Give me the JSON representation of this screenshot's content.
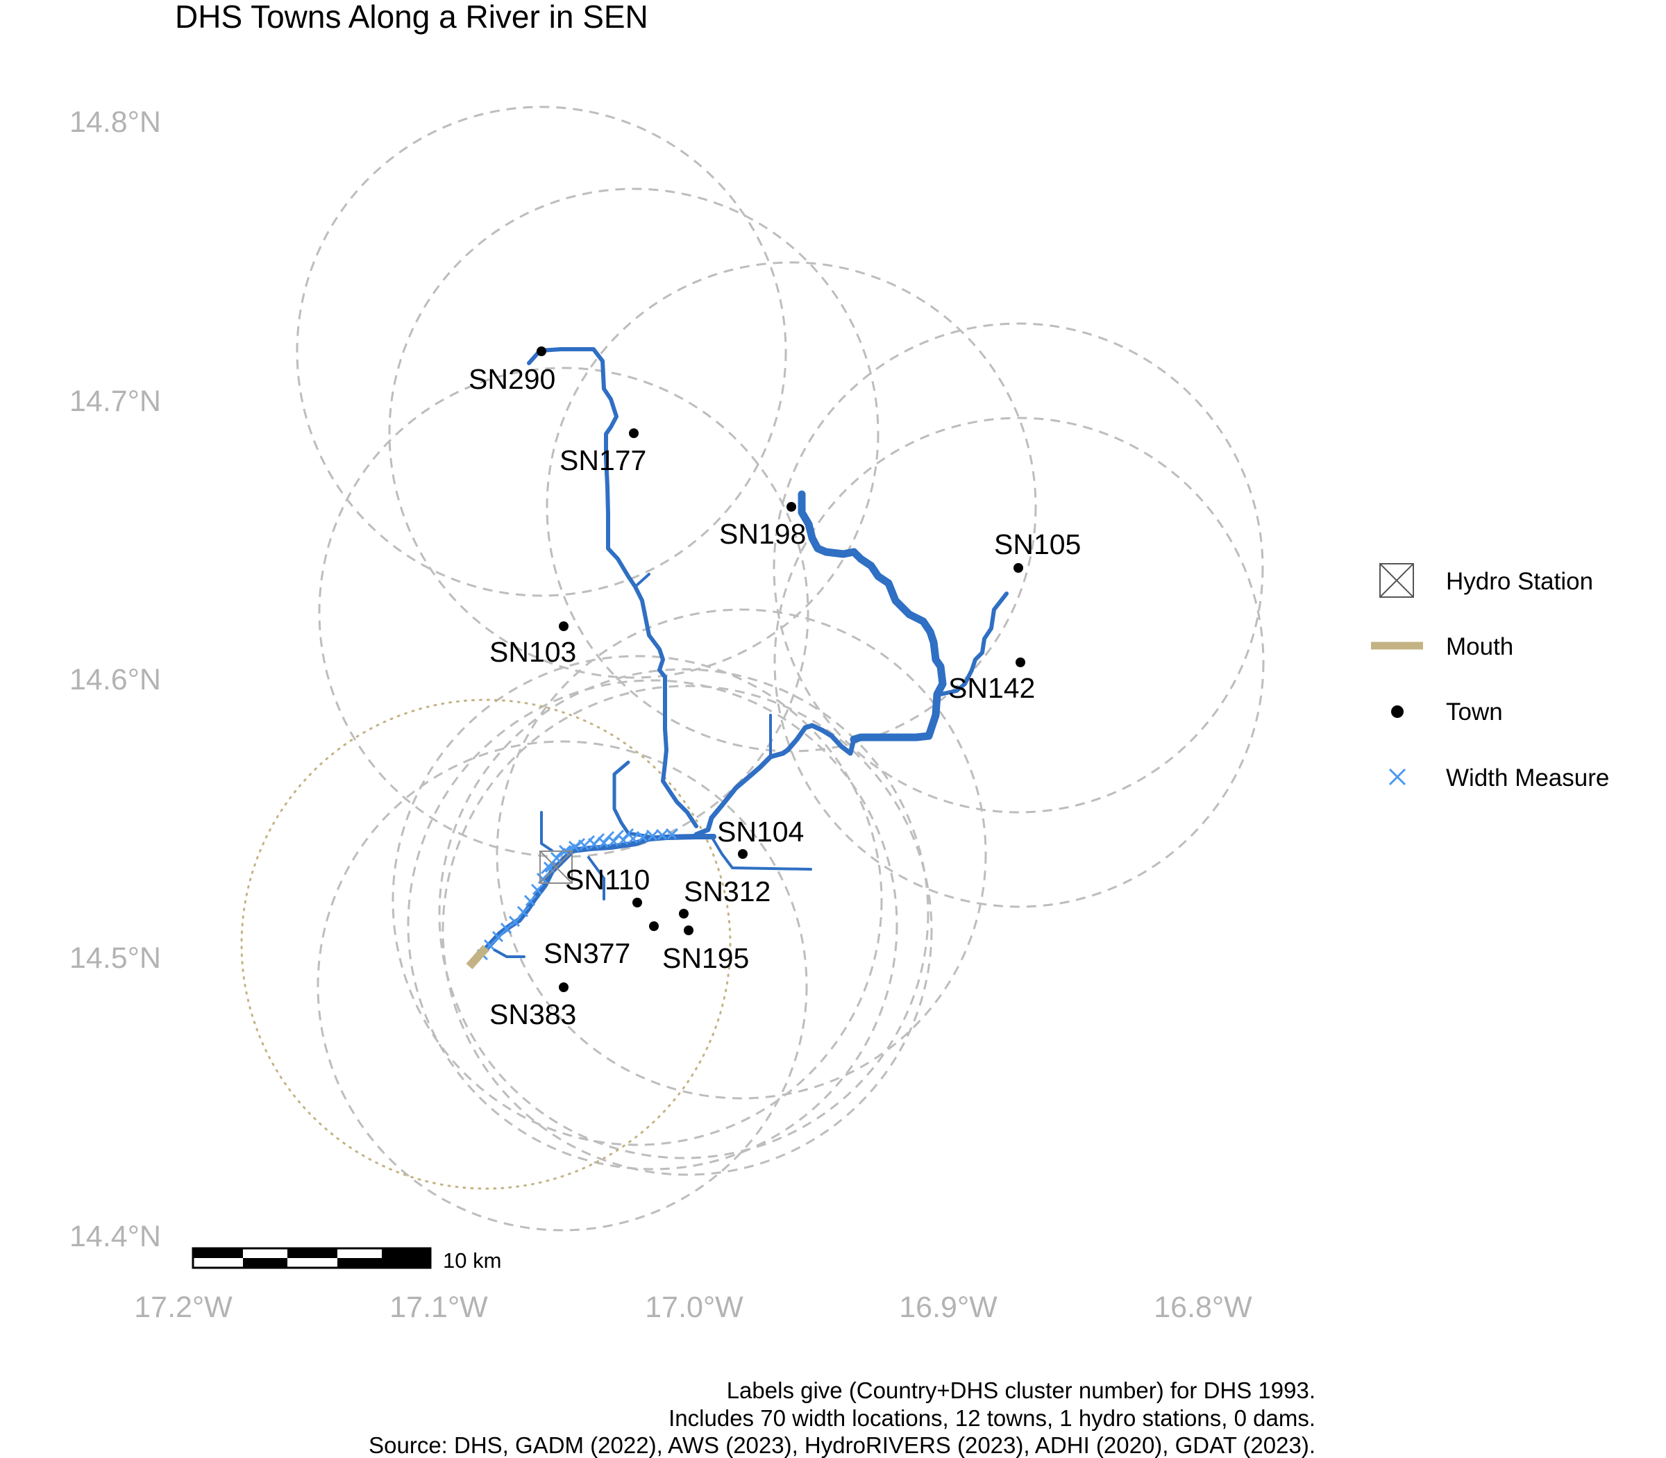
{
  "title": "DHS Towns Along a River in SEN",
  "axes": {
    "y_ticks": [
      "14.8°N",
      "14.7°N",
      "14.6°N",
      "14.5°N",
      "14.4°N"
    ],
    "x_ticks": [
      "17.2°W",
      "17.1°W",
      "17.0°W",
      "16.9°W",
      "16.8°W"
    ],
    "lon_range": [
      -17.2,
      -16.8
    ],
    "lat_range": [
      14.4,
      14.8
    ]
  },
  "towns": [
    {
      "label": "SN290",
      "lon": -17.056,
      "lat": 14.718
    },
    {
      "label": "SN177",
      "lon": -17.021,
      "lat": 14.689
    },
    {
      "label": "SN198",
      "lon": -16.96,
      "lat": 14.66
    },
    {
      "label": "SN105",
      "lon": -16.869,
      "lat": 14.641
    },
    {
      "label": "SN103",
      "lon": -17.047,
      "lat": 14.621
    },
    {
      "label": "SN142",
      "lon": -16.869,
      "lat": 14.606
    },
    {
      "label": "SN104",
      "lon": -16.978,
      "lat": 14.538
    },
    {
      "label": "SN110",
      "lon": -17.023,
      "lat": 14.521
    },
    {
      "label": "SN312",
      "lon": -17.005,
      "lat": 14.517
    },
    {
      "label": "SN377",
      "lon": -17.017,
      "lat": 14.512
    },
    {
      "label": "SN195",
      "lon": -17.003,
      "lat": 14.511
    },
    {
      "label": "SN383",
      "lon": -17.047,
      "lat": 14.489
    }
  ],
  "legend": {
    "items": [
      {
        "label": "Hydro Station",
        "icon": "boxed-x-icon"
      },
      {
        "label": "Mouth",
        "icon": "tan-line-icon",
        "color": "#c3b384"
      },
      {
        "label": "Town",
        "icon": "dot-icon",
        "color": "#000000"
      },
      {
        "label": "Width Measure",
        "icon": "cross-icon",
        "color": "#4a98f0"
      }
    ]
  },
  "scale_bar": {
    "label": "10 km"
  },
  "caption": [
    "Labels give (Country+DHS cluster number) for DHS 1993.",
    "Includes 70 width locations, 12 towns, 1 hydro stations, 0 dams.",
    "Source: DHS, GADM (2022), AWS (2023), HydroRIVERS (2023), ADHI (2020), GDAT (2023)."
  ],
  "colors": {
    "river": "#2f6fc4",
    "width_measure": "#4a98f0",
    "buffer": "#bdbdbd",
    "mouth": "#c3b384"
  }
}
